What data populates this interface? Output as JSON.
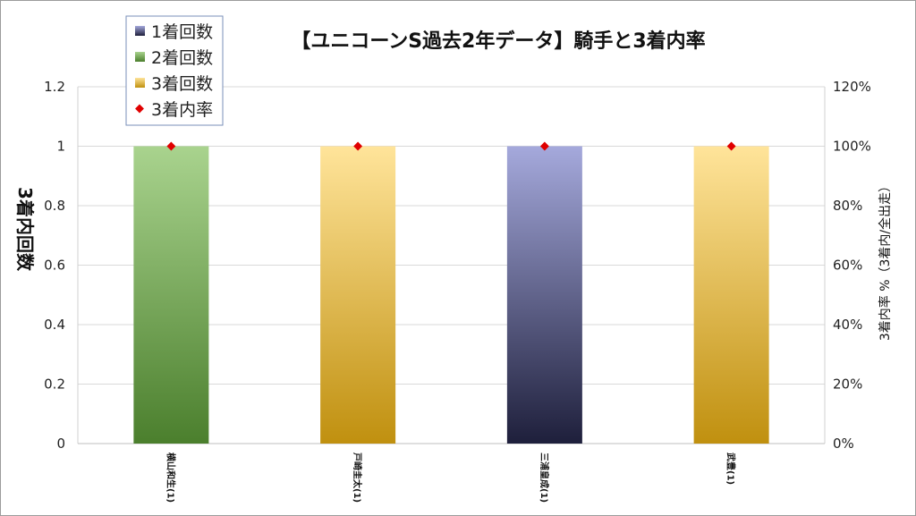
{
  "chart_data": {
    "type": "bar",
    "title": "【ユニコーンS過去2年データ】騎手と3着内率",
    "ylabel": "3着内回数",
    "y2label": "3着内率 %（3着内/全出走）",
    "categories": [
      "横山和生(1)",
      "戸崎圭太(1)",
      "三浦皇成(1)",
      "武豊(1)"
    ],
    "ylim": [
      0,
      1.2
    ],
    "yticks": [
      0,
      0.2,
      0.4,
      0.6,
      0.8,
      1,
      1.2
    ],
    "y2lim": [
      0,
      120
    ],
    "y2ticks": [
      "0%",
      "20%",
      "40%",
      "60%",
      "80%",
      "100%",
      "120%"
    ],
    "grid": true,
    "legend_position": "top-left",
    "series": [
      {
        "name": "1着回数",
        "kind": "bar",
        "values": [
          0,
          0,
          1,
          0
        ],
        "color_top": "#a5a9dc",
        "color_bottom": "#1e1f3b"
      },
      {
        "name": "2着回数",
        "kind": "bar",
        "values": [
          1,
          0,
          0,
          0
        ],
        "color_top": "#a9d38e",
        "color_bottom": "#4b7f2d"
      },
      {
        "name": "3着回数",
        "kind": "bar",
        "values": [
          0,
          1,
          0,
          1
        ],
        "color_top": "#ffe49a",
        "color_bottom": "#c0900f"
      },
      {
        "name": "3着内率",
        "kind": "marker",
        "axis": "secondary",
        "values": [
          100,
          100,
          100,
          100
        ],
        "color": "#e00000"
      }
    ]
  }
}
